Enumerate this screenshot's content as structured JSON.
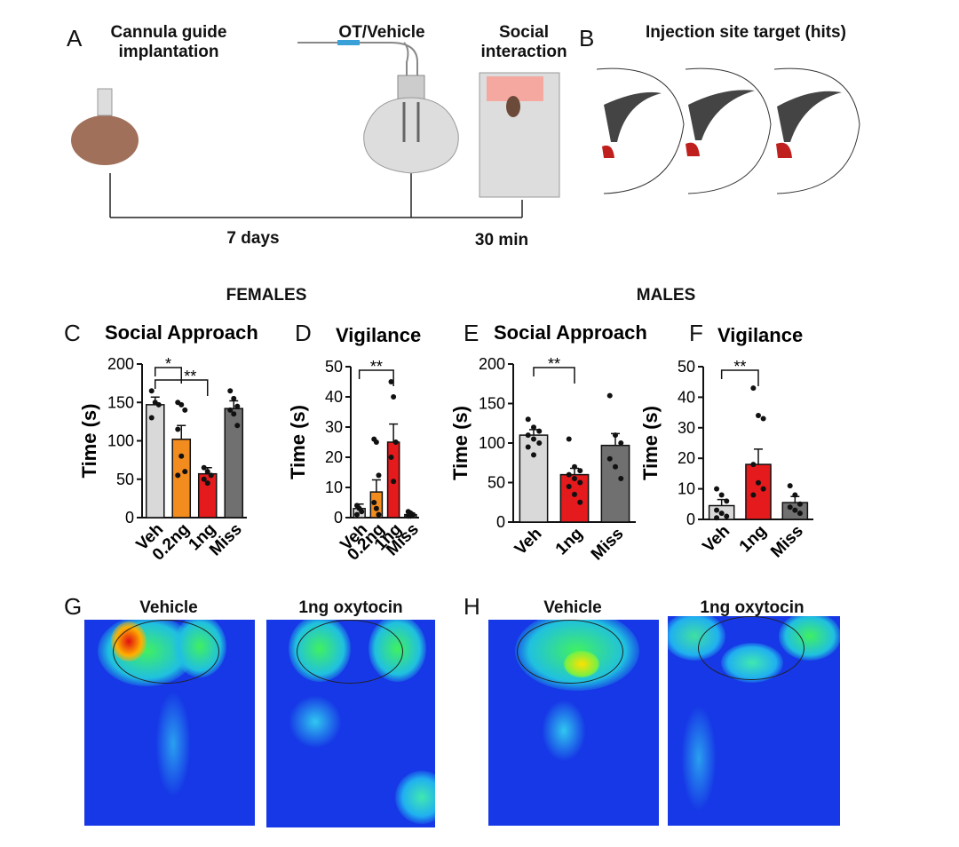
{
  "panel_labels": [
    "A",
    "B",
    "C",
    "D",
    "E",
    "F",
    "G",
    "H"
  ],
  "timeline": {
    "step_1": "Cannula guide implantation",
    "step_2": "OT/Vehicle",
    "step_3": "Social interaction",
    "interval_1": "7 days",
    "interval_2": "30 min"
  },
  "injection_title": "Injection site target (hits)",
  "groups": [
    "FEMALES",
    "MALES"
  ],
  "heatmaps": {
    "female": [
      "Vehicle",
      "1ng oxytocin"
    ],
    "male": [
      "Vehicle",
      "1ng oxytocin"
    ]
  },
  "chart_data": [
    {
      "type": "bar",
      "title": "Social Approach",
      "y_label": "Time (s)",
      "categories": [
        "Veh",
        "0.2ng",
        "1ng",
        "Miss"
      ],
      "values": [
        147,
        102,
        57,
        142
      ],
      "errors": [
        10,
        18,
        8,
        10
      ],
      "colors": [
        "#d9d9d9",
        "#f28c1e",
        "#e41a1c",
        "#707070"
      ],
      "points": [
        [
          165,
          150,
          147,
          130
        ],
        [
          150,
          147,
          140,
          115,
          80,
          60,
          55
        ],
        [
          65,
          60,
          55,
          50,
          45
        ],
        [
          165,
          155,
          145,
          140,
          135,
          120
        ]
      ],
      "ylim": [
        0,
        200
      ],
      "yticks": [
        0,
        50,
        100,
        150,
        200
      ],
      "significance": [
        {
          "label": "*",
          "between": [
            "Veh",
            "0.2ng"
          ]
        },
        {
          "label": "**",
          "between": [
            "Veh",
            "1ng"
          ]
        }
      ]
    },
    {
      "type": "bar",
      "title": "Vigilance",
      "y_label": "Time (s)",
      "categories": [
        "Veh",
        "0.2ng",
        "1ng",
        "Miss"
      ],
      "values": [
        3,
        8.5,
        25,
        1
      ],
      "errors": [
        1.5,
        4,
        6,
        0.5
      ],
      "colors": [
        "#d9d9d9",
        "#f28c1e",
        "#e41a1c",
        "#707070"
      ],
      "points": [
        [
          4,
          3,
          2,
          1
        ],
        [
          26,
          25,
          14,
          5,
          3,
          1
        ],
        [
          45,
          40,
          25,
          20,
          12
        ],
        [
          2,
          1.5,
          1,
          0.5,
          0.5
        ]
      ],
      "ylim": [
        0,
        50
      ],
      "yticks": [
        0,
        10,
        20,
        30,
        40,
        50
      ],
      "significance": [
        {
          "label": "**",
          "between": [
            "Veh",
            "1ng"
          ]
        }
      ]
    },
    {
      "type": "bar",
      "title": "Social Approach",
      "y_label": "Time (s)",
      "categories": [
        "Veh",
        "1ng",
        "Miss"
      ],
      "values": [
        110,
        60,
        97
      ],
      "errors": [
        7,
        8,
        15
      ],
      "colors": [
        "#d9d9d9",
        "#e41a1c",
        "#707070"
      ],
      "points": [
        [
          130,
          120,
          115,
          110,
          105,
          100,
          95,
          85
        ],
        [
          105,
          70,
          65,
          60,
          55,
          50,
          45,
          35,
          25
        ],
        [
          160,
          110,
          100,
          80,
          70,
          55
        ]
      ],
      "ylim": [
        0,
        200
      ],
      "yticks": [
        0,
        50,
        100,
        150,
        200
      ],
      "significance": [
        {
          "label": "**",
          "between": [
            "Veh",
            "1ng"
          ]
        }
      ]
    },
    {
      "type": "bar",
      "title": "Vigilance",
      "y_label": "Time (s)",
      "categories": [
        "Veh",
        "1ng",
        "Miss"
      ],
      "values": [
        4.5,
        18,
        5.5
      ],
      "errors": [
        2,
        5,
        2
      ],
      "colors": [
        "#d9d9d9",
        "#e41a1c",
        "#707070"
      ],
      "points": [
        [
          10,
          8,
          6,
          3,
          2,
          1,
          0.5
        ],
        [
          43,
          34,
          33,
          18,
          12,
          10,
          8
        ],
        [
          11,
          8,
          5,
          4,
          3,
          2
        ]
      ],
      "ylim": [
        0,
        50
      ],
      "yticks": [
        0,
        10,
        20,
        30,
        40,
        50
      ],
      "significance": [
        {
          "label": "**",
          "between": [
            "Veh",
            "1ng"
          ]
        }
      ]
    }
  ]
}
